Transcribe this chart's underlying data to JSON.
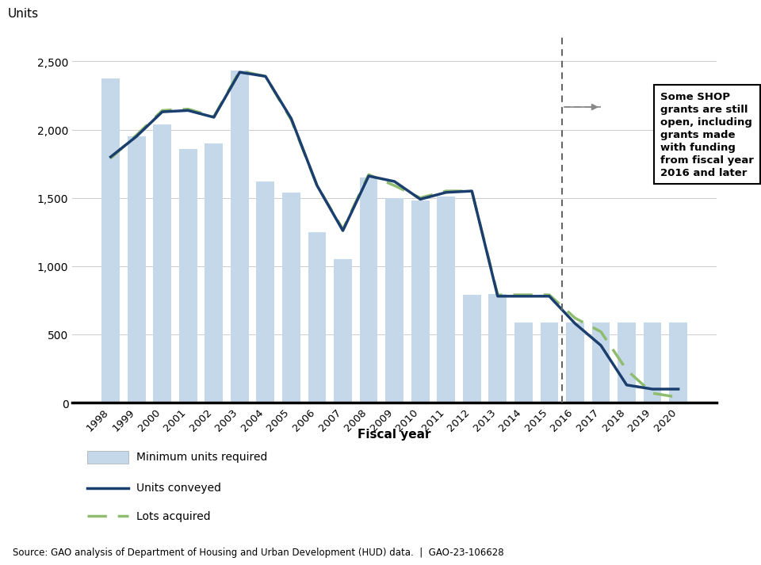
{
  "years": [
    1998,
    1999,
    2000,
    2001,
    2002,
    2003,
    2004,
    2005,
    2006,
    2007,
    2008,
    2009,
    2010,
    2011,
    2012,
    2013,
    2014,
    2015,
    2016,
    2017,
    2018,
    2019,
    2020
  ],
  "min_units": [
    2375,
    1950,
    2040,
    1860,
    1900,
    2430,
    1620,
    1540,
    1250,
    1050,
    1650,
    1500,
    1480,
    1510,
    790,
    795,
    590,
    590,
    590,
    590,
    590,
    590,
    590
  ],
  "units_conveyed": [
    1800,
    1950,
    2130,
    2140,
    2090,
    2420,
    2390,
    2080,
    1590,
    1260,
    1660,
    1620,
    1490,
    1540,
    1550,
    780,
    780,
    780,
    580,
    420,
    130,
    100,
    100
  ],
  "lots_acquired": [
    1790,
    1960,
    2140,
    2150,
    2095,
    2430,
    2390,
    2070,
    1590,
    1270,
    1670,
    1590,
    1500,
    1550,
    1550,
    790,
    790,
    790,
    620,
    520,
    240,
    70,
    40
  ],
  "bar_color": "#c5d8ea",
  "line_conveyed_color": "#1a3f6f",
  "line_lots_color": "#8fbc6f",
  "ylabel": "Units",
  "xlabel": "Fiscal year",
  "yticks": [
    0,
    500,
    1000,
    1500,
    2000,
    2500
  ],
  "ylim": [
    0,
    2700
  ],
  "source_text": "Source: GAO analysis of Department of Housing and Urban Development (HUD) data.  |  GAO-23-106628",
  "annotation_text": "Some SHOP\ngrants are still\nopen, including\ngrants made\nwith funding\nfrom fiscal year\n2016 and later",
  "legend_bar_label": "Minimum units required",
  "legend_conveyed_label": "Units conveyed",
  "legend_lots_label": "Lots acquired",
  "vline_index": 17.5
}
